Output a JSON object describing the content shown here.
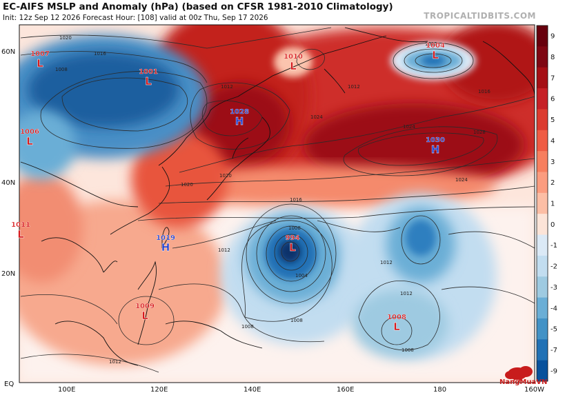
{
  "header": {
    "title": "EC-AIFS MSLP and Anomaly (hPa) (based on CFSR 1981-2010 Climatology)",
    "subtitle": "Init: 12z Sep 12 2026   Forecast Hour: [108]   valid at 00z Thu, Sep 17 2026",
    "site": "TROPICALTIDBITS.COM"
  },
  "axes": {
    "lat_labels": [
      "60N",
      "40N",
      "20N",
      "EQ"
    ],
    "lon_labels": [
      "100E",
      "120E",
      "140E",
      "160E",
      "180",
      "160W"
    ]
  },
  "colorbar": {
    "labels": [
      "9",
      "8",
      "7",
      "6",
      "5",
      "4",
      "3",
      "2",
      "1",
      "0",
      "-1",
      "-2",
      "-3",
      "-4",
      "-5",
      "-7",
      "-9"
    ],
    "colors": [
      "#67000d",
      "#7e0713",
      "#a50f15",
      "#c62026",
      "#dc3b2f",
      "#ef5c44",
      "#f77f5f",
      "#fb9c7f",
      "#fcbea5",
      "#fce4d8",
      "#dbe9f6",
      "#c2ddf0",
      "#9ecae1",
      "#6aaed6",
      "#4292c6",
      "#2171b5",
      "#08519c"
    ]
  },
  "pressure_centers": [
    {
      "type": "L",
      "value": "1007"
    },
    {
      "type": "L",
      "value": "1001"
    },
    {
      "type": "L",
      "value": "1010"
    },
    {
      "type": "L",
      "value": "1004"
    },
    {
      "type": "H",
      "value": "1028"
    },
    {
      "type": "L",
      "value": "1006"
    },
    {
      "type": "H",
      "value": "1030"
    },
    {
      "type": "L",
      "value": "1011"
    },
    {
      "type": "H",
      "value": "1019"
    },
    {
      "type": "L",
      "value": "994"
    },
    {
      "type": "L",
      "value": "1009"
    },
    {
      "type": "L",
      "value": "1008"
    }
  ],
  "isobar_labels": [
    "1020",
    "1016",
    "1008",
    "1012",
    "1024",
    "1028",
    "1020",
    "1024",
    "1016",
    "1008",
    "1004",
    "1012",
    "1008",
    "1012",
    "1008",
    "1012",
    "1012",
    "1020",
    "1024",
    "1012",
    "1016",
    "1008",
    "1012"
  ],
  "watermark": "NangMuaVN"
}
